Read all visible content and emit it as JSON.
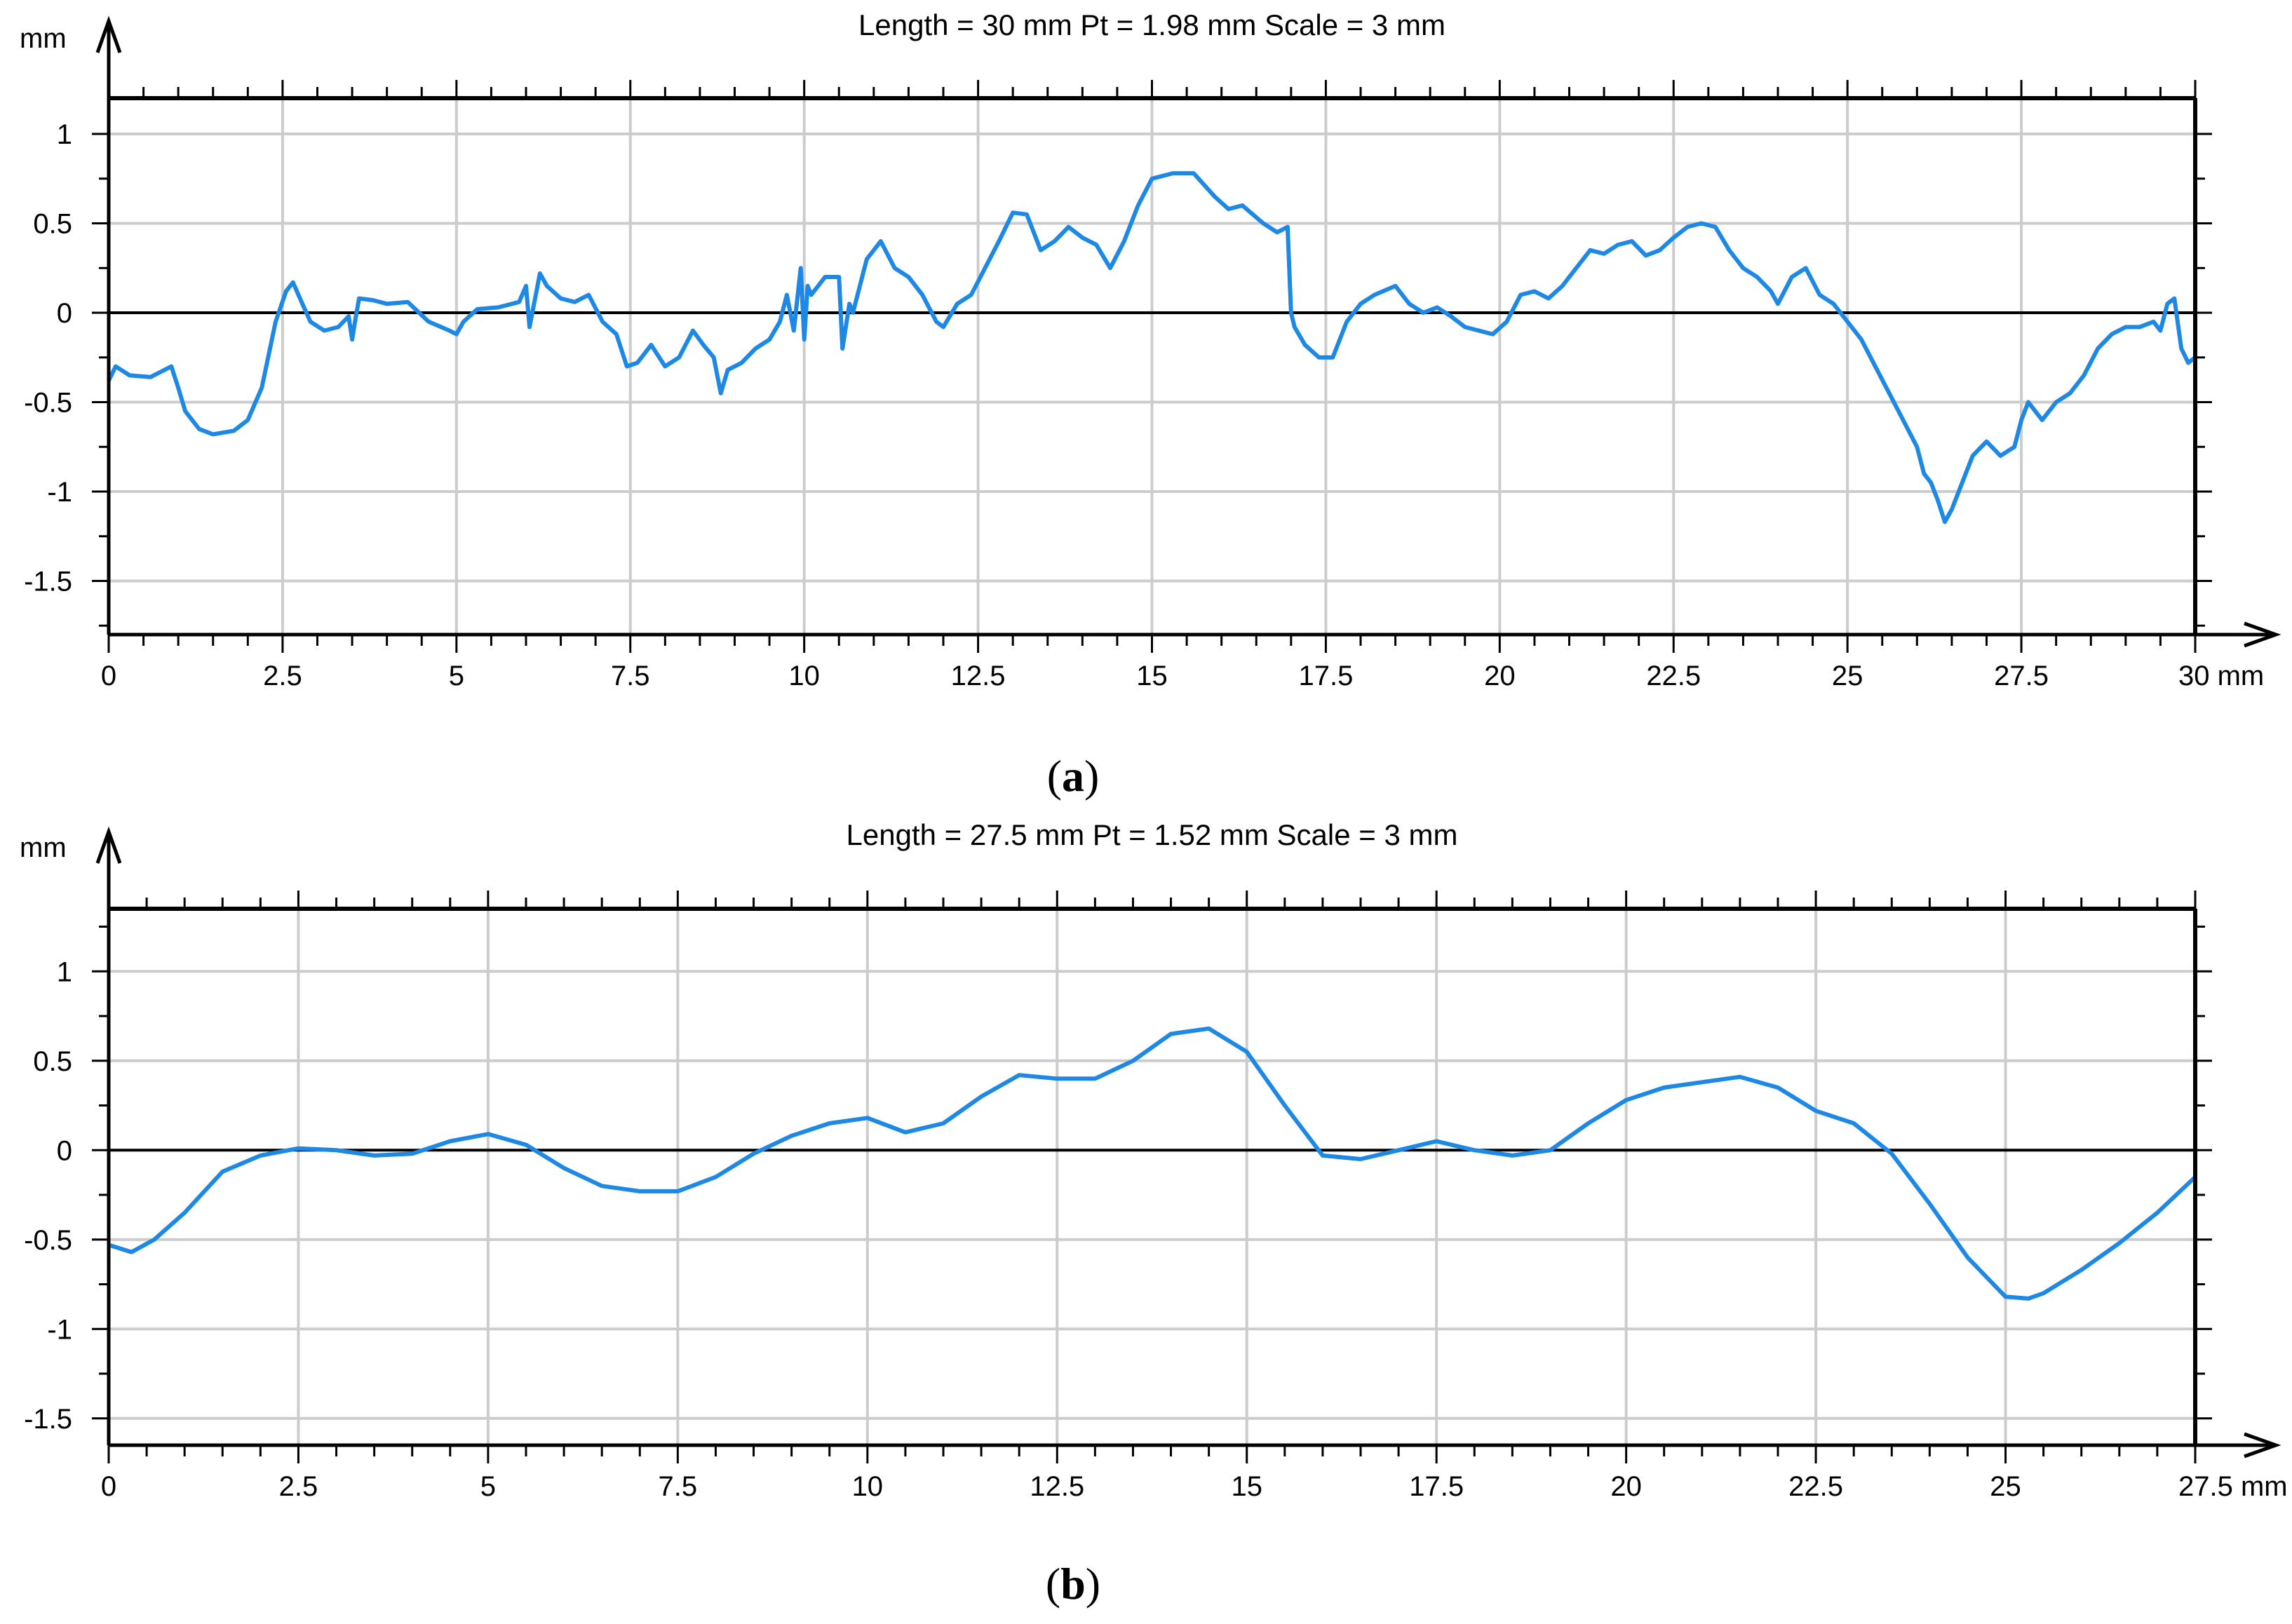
{
  "figure": {
    "subfigure_labels": [
      "(a)",
      "(b)"
    ],
    "caption_letters": [
      "a",
      "b"
    ]
  },
  "chart_data": [
    {
      "type": "line",
      "title": "Length = 30 mm  Pt = 1.98 mm  Scale = 3 mm",
      "ylabel": "mm",
      "xunit": "mm",
      "xlim": [
        0,
        30
      ],
      "ylim": [
        -1.8,
        1.2
      ],
      "x_ticks": [
        0,
        2.5,
        5,
        7.5,
        10,
        12.5,
        15,
        17.5,
        20,
        22.5,
        25,
        27.5,
        30
      ],
      "x_tick_labels": [
        "0",
        "2.5",
        "5",
        "7.5",
        "10",
        "12.5",
        "15",
        "17.5",
        "20",
        "22.5",
        "25",
        "27.5",
        "30 mm"
      ],
      "y_ticks": [
        1,
        0.5,
        0,
        -0.5,
        -1,
        -1.5
      ],
      "y_tick_labels": [
        "1",
        "0.5",
        "0",
        "-0.5",
        "-1",
        "-1.5"
      ],
      "grid": true,
      "zero_line": true,
      "line_color": "#1E88E5",
      "series": [
        {
          "x": [
            0,
            0.1,
            0.3,
            0.6,
            0.9,
            1.0,
            1.1,
            1.3,
            1.5,
            1.8,
            2.0,
            2.2,
            2.4,
            2.55,
            2.65,
            2.75,
            2.9,
            3.1,
            3.3,
            3.45,
            3.5,
            3.55,
            3.6,
            3.8,
            4.0,
            4.3,
            4.6,
            4.9,
            5.0,
            5.1,
            5.3,
            5.6,
            5.9,
            6.0,
            6.05,
            6.15,
            6.2,
            6.3,
            6.5,
            6.7,
            6.9,
            7.1,
            7.3,
            7.45,
            7.6,
            7.8,
            8.0,
            8.2,
            8.4,
            8.55,
            8.7,
            8.8,
            8.9,
            9.1,
            9.3,
            9.5,
            9.65,
            9.75,
            9.85,
            9.95,
            10.0,
            10.05,
            10.1,
            10.2,
            10.3,
            10.5,
            10.55,
            10.65,
            10.7,
            10.9,
            11.0,
            11.1,
            11.3,
            11.5,
            11.7,
            11.9,
            12.0,
            12.2,
            12.4,
            12.6,
            12.8,
            13.0,
            13.2,
            13.4,
            13.6,
            13.8,
            14.0,
            14.2,
            14.4,
            14.6,
            14.8,
            15.0,
            15.3,
            15.6,
            15.9,
            16.1,
            16.3,
            16.6,
            16.8,
            16.95,
            17.0,
            17.05,
            17.2,
            17.4,
            17.6,
            17.8,
            18.0,
            18.2,
            18.5,
            18.7,
            18.9,
            19.1,
            19.3,
            19.5,
            19.7,
            19.9,
            20.1,
            20.3,
            20.5,
            20.7,
            20.9,
            21.1,
            21.3,
            21.5,
            21.7,
            21.9,
            22.1,
            22.3,
            22.5,
            22.7,
            22.9,
            23.1,
            23.3,
            23.5,
            23.7,
            23.9,
            24.0,
            24.2,
            24.4,
            24.6,
            24.8,
            25.0,
            25.2,
            25.4,
            25.6,
            25.8,
            26.0,
            26.1,
            26.2,
            26.3,
            26.4,
            26.5,
            26.6,
            26.8,
            27.0,
            27.2,
            27.4,
            27.5,
            27.6,
            27.7,
            27.8,
            28.0,
            28.2,
            28.4,
            28.6,
            28.8,
            29.0,
            29.2,
            29.4,
            29.5,
            29.6,
            29.7,
            29.8,
            29.9,
            30.0
          ],
          "y": [
            -0.38,
            -0.3,
            -0.35,
            -0.36,
            -0.3,
            -0.42,
            -0.55,
            -0.65,
            -0.68,
            -0.66,
            -0.6,
            -0.42,
            -0.05,
            0.12,
            0.17,
            0.08,
            -0.05,
            -0.1,
            -0.08,
            -0.02,
            -0.15,
            -0.03,
            0.08,
            0.07,
            0.05,
            0.06,
            -0.05,
            -0.1,
            -0.12,
            -0.05,
            0.02,
            0.03,
            0.06,
            0.15,
            -0.08,
            0.12,
            0.22,
            0.15,
            0.08,
            0.06,
            0.1,
            -0.05,
            -0.12,
            -0.3,
            -0.28,
            -0.18,
            -0.3,
            -0.25,
            -0.1,
            -0.18,
            -0.25,
            -0.45,
            -0.32,
            -0.28,
            -0.2,
            -0.15,
            -0.05,
            0.1,
            -0.1,
            0.25,
            -0.15,
            0.15,
            0.1,
            0.15,
            0.2,
            0.2,
            -0.2,
            0.05,
            0.0,
            0.3,
            0.35,
            0.4,
            0.25,
            0.2,
            0.1,
            -0.05,
            -0.08,
            0.05,
            0.1,
            0.25,
            0.4,
            0.56,
            0.55,
            0.35,
            0.4,
            0.48,
            0.42,
            0.38,
            0.25,
            0.4,
            0.6,
            0.75,
            0.78,
            0.78,
            0.65,
            0.58,
            0.6,
            0.5,
            0.45,
            0.48,
            0.0,
            -0.08,
            -0.18,
            -0.25,
            -0.25,
            -0.05,
            0.05,
            0.1,
            0.15,
            0.05,
            0.0,
            0.03,
            -0.02,
            -0.08,
            -0.1,
            -0.12,
            -0.05,
            0.1,
            0.12,
            0.08,
            0.15,
            0.25,
            0.35,
            0.33,
            0.38,
            0.4,
            0.32,
            0.35,
            0.42,
            0.48,
            0.5,
            0.48,
            0.35,
            0.25,
            0.2,
            0.12,
            0.05,
            0.2,
            0.25,
            0.1,
            0.05,
            -0.05,
            -0.15,
            -0.3,
            -0.45,
            -0.6,
            -0.75,
            -0.9,
            -0.95,
            -1.05,
            -1.17,
            -1.1,
            -1.0,
            -0.8,
            -0.72,
            -0.8,
            -0.75,
            -0.6,
            -0.5,
            -0.55,
            -0.6,
            -0.5,
            -0.45,
            -0.35,
            -0.2,
            -0.12,
            -0.08,
            -0.08,
            -0.05,
            -0.1,
            0.05,
            0.08,
            -0.2,
            -0.28,
            -0.25
          ]
        }
      ]
    },
    {
      "type": "line",
      "title": "Length = 27.5 mm  Pt = 1.52 mm  Scale = 3 mm",
      "ylabel": "mm",
      "xunit": "mm",
      "xlim": [
        0,
        27.5
      ],
      "ylim": [
        -1.65,
        1.35
      ],
      "x_ticks": [
        0,
        2.5,
        5,
        7.5,
        10,
        12.5,
        15,
        17.5,
        20,
        22.5,
        25,
        27.5
      ],
      "x_tick_labels": [
        "0",
        "2.5",
        "5",
        "7.5",
        "10",
        "12.5",
        "15",
        "17.5",
        "20",
        "22.5",
        "25",
        "27.5 mm"
      ],
      "y_ticks": [
        1,
        0.5,
        0,
        -0.5,
        -1,
        -1.5
      ],
      "y_tick_labels": [
        "1",
        "0.5",
        "0",
        "-0.5",
        "-1",
        "-1.5"
      ],
      "grid": true,
      "zero_line": true,
      "line_color": "#1E88E5",
      "series": [
        {
          "x": [
            0,
            0.3,
            0.6,
            1.0,
            1.5,
            2.0,
            2.5,
            3.0,
            3.5,
            4.0,
            4.5,
            5.0,
            5.5,
            6.0,
            6.5,
            7.0,
            7.5,
            8.0,
            8.5,
            9.0,
            9.5,
            10.0,
            10.5,
            11.0,
            11.5,
            12.0,
            12.5,
            13.0,
            13.5,
            14.0,
            14.5,
            15.0,
            15.5,
            16.0,
            16.5,
            17.0,
            17.5,
            18.0,
            18.5,
            19.0,
            19.5,
            20.0,
            20.5,
            21.0,
            21.5,
            22.0,
            22.5,
            23.0,
            23.5,
            24.0,
            24.5,
            25.0,
            25.3,
            25.5,
            26.0,
            26.5,
            27.0,
            27.5
          ],
          "y": [
            -0.53,
            -0.57,
            -0.5,
            -0.35,
            -0.12,
            -0.03,
            0.01,
            0.0,
            -0.03,
            -0.02,
            0.05,
            0.09,
            0.03,
            -0.1,
            -0.2,
            -0.23,
            -0.23,
            -0.15,
            -0.02,
            0.08,
            0.15,
            0.18,
            0.1,
            0.15,
            0.3,
            0.42,
            0.4,
            0.4,
            0.5,
            0.65,
            0.68,
            0.55,
            0.25,
            -0.03,
            -0.05,
            0.0,
            0.05,
            0.0,
            -0.03,
            0.0,
            0.15,
            0.28,
            0.35,
            0.38,
            0.41,
            0.35,
            0.22,
            0.15,
            -0.02,
            -0.3,
            -0.6,
            -0.82,
            -0.83,
            -0.8,
            -0.67,
            -0.52,
            -0.35,
            -0.15
          ]
        }
      ]
    }
  ]
}
